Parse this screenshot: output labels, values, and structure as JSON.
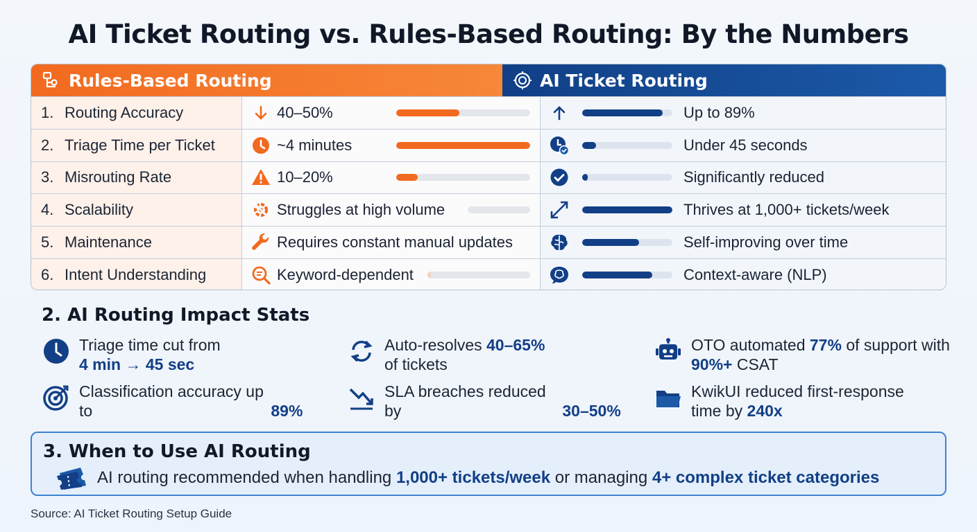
{
  "title": "AI Ticket Routing vs. Rules-Based Routing: By the Numbers",
  "table": {
    "left_header": "Rules-Based Routing",
    "right_header": "AI Ticket Routing",
    "rows": [
      {
        "num": "1.",
        "metric": "Routing Accuracy",
        "rule_icon": "arrow-down-icon",
        "rule": "40–50%",
        "rule_level": 0.47,
        "ai_icon": "arrow-up-icon",
        "ai": "Up to 89%",
        "ai_level": 0.89
      },
      {
        "num": "2.",
        "metric": "Triage Time per Ticket",
        "rule_icon": "clock-icon",
        "rule": "~4 minutes",
        "rule_level": 1.0,
        "ai_icon": "clock-check-icon",
        "ai": "Under 45 seconds",
        "ai_level": 0.15
      },
      {
        "num": "3.",
        "metric": "Misrouting Rate",
        "rule_icon": "warning-icon",
        "rule": "10–20%",
        "rule_level": 0.16,
        "ai_icon": "check-circle-icon",
        "ai": "Significantly reduced",
        "ai_level": 0.06
      },
      {
        "num": "4.",
        "metric": "Scalability",
        "rule_icon": "broken-gear-icon",
        "rule": "Struggles at high volume",
        "rule_level": 0.0,
        "ai_icon": "expand-arrows-icon",
        "ai": "Thrives at 1,000+ tickets/week",
        "ai_level": 1.0
      },
      {
        "num": "5.",
        "metric": "Maintenance",
        "rule_icon": "wrench-icon",
        "rule": "Requires constant manual updates",
        "rule_level": 0.0,
        "ai_icon": "brain-icon",
        "ai": "Self-improving over time",
        "ai_level": 0.63
      },
      {
        "num": "6.",
        "metric": "Intent Understanding",
        "rule_icon": "search-text-icon",
        "rule": "Keyword-dependent",
        "rule_level": 0.05,
        "ai_icon": "speech-brain-icon",
        "ai": "Context-aware (NLP)",
        "ai_level": 0.78
      }
    ]
  },
  "impact": {
    "title": "2. AI Routing Impact Stats",
    "stats": [
      {
        "icon": "clock-icon",
        "pre": "Triage time cut from",
        "hl": "4 min → 45 sec",
        "post": ""
      },
      {
        "icon": "target-icon",
        "pre": "Classification accuracy up to",
        "hl": "89%",
        "post": ""
      },
      {
        "icon": "refresh-icon",
        "pre": "Auto-resolves",
        "hl": "40–65%",
        "post": "of tickets"
      },
      {
        "icon": "trend-down-icon",
        "pre": "SLA breaches reduced by",
        "hl": "30–50%",
        "post": ""
      },
      {
        "icon": "robot-icon",
        "pre": "OTO automated",
        "hl": "77%",
        "mid": "of support with",
        "hl2": "90%+",
        "post": "CSAT"
      },
      {
        "icon": "folder-icon",
        "pre": "KwikUI reduced first-response time by",
        "hl": "240x",
        "post": ""
      }
    ]
  },
  "when": {
    "title": "3. When to Use AI Routing",
    "pre": "AI routing recommended when handling",
    "hl1": "1,000+ tickets/week",
    "mid": "or managing",
    "hl2": "4+ complex ticket categories"
  },
  "source": "Source: AI Ticket Routing Setup Guide",
  "colors": {
    "orange": "#f26a1f",
    "navy": "#123f86",
    "accent_blue": "#3d82d0"
  }
}
